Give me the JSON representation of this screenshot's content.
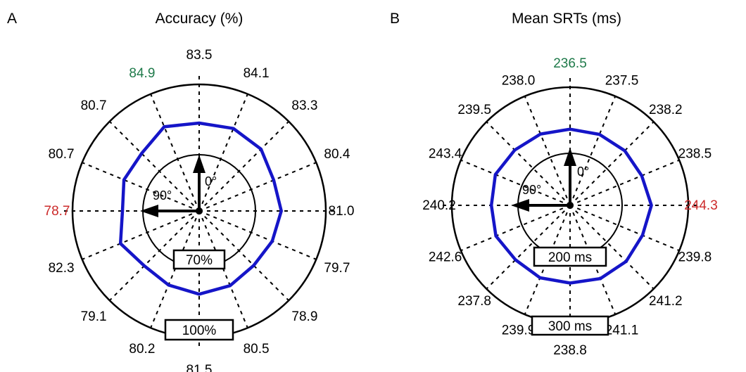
{
  "chart_data": [
    {
      "type": "polar-line",
      "panel_label": "A",
      "title": "Accuracy (%)",
      "radial_range": [
        70,
        100
      ],
      "ring_labels": [
        "70%",
        "100%"
      ],
      "angle_labels": [
        "0°",
        "90°"
      ],
      "directions": 16,
      "values": [
        83.5,
        84.9,
        80.7,
        80.7,
        78.7,
        82.3,
        79.1,
        80.2,
        81.5,
        80.5,
        78.9,
        79.7,
        81.0,
        80.4,
        83.3,
        84.1
      ],
      "max_index": 1,
      "min_index": 4,
      "series_color": "#1515c8",
      "max_color": "#1f7a4a",
      "min_color": "#cc2a2a"
    },
    {
      "type": "polar-line",
      "panel_label": "B",
      "title": "Mean SRTs (ms)",
      "radial_range": [
        200,
        300
      ],
      "ring_labels": [
        "200 ms",
        "300 ms"
      ],
      "angle_labels": [
        "0°",
        "90°"
      ],
      "directions": 16,
      "values": [
        236.5,
        238.0,
        239.5,
        243.4,
        240.2,
        242.6,
        237.8,
        239.9,
        238.8,
        241.1,
        241.2,
        239.8,
        244.3,
        238.5,
        238.2,
        237.5
      ],
      "max_index": 12,
      "min_index": 0,
      "series_color": "#1515c8",
      "max_color": "#cc2a2a",
      "min_color": "#1f7a4a"
    }
  ]
}
